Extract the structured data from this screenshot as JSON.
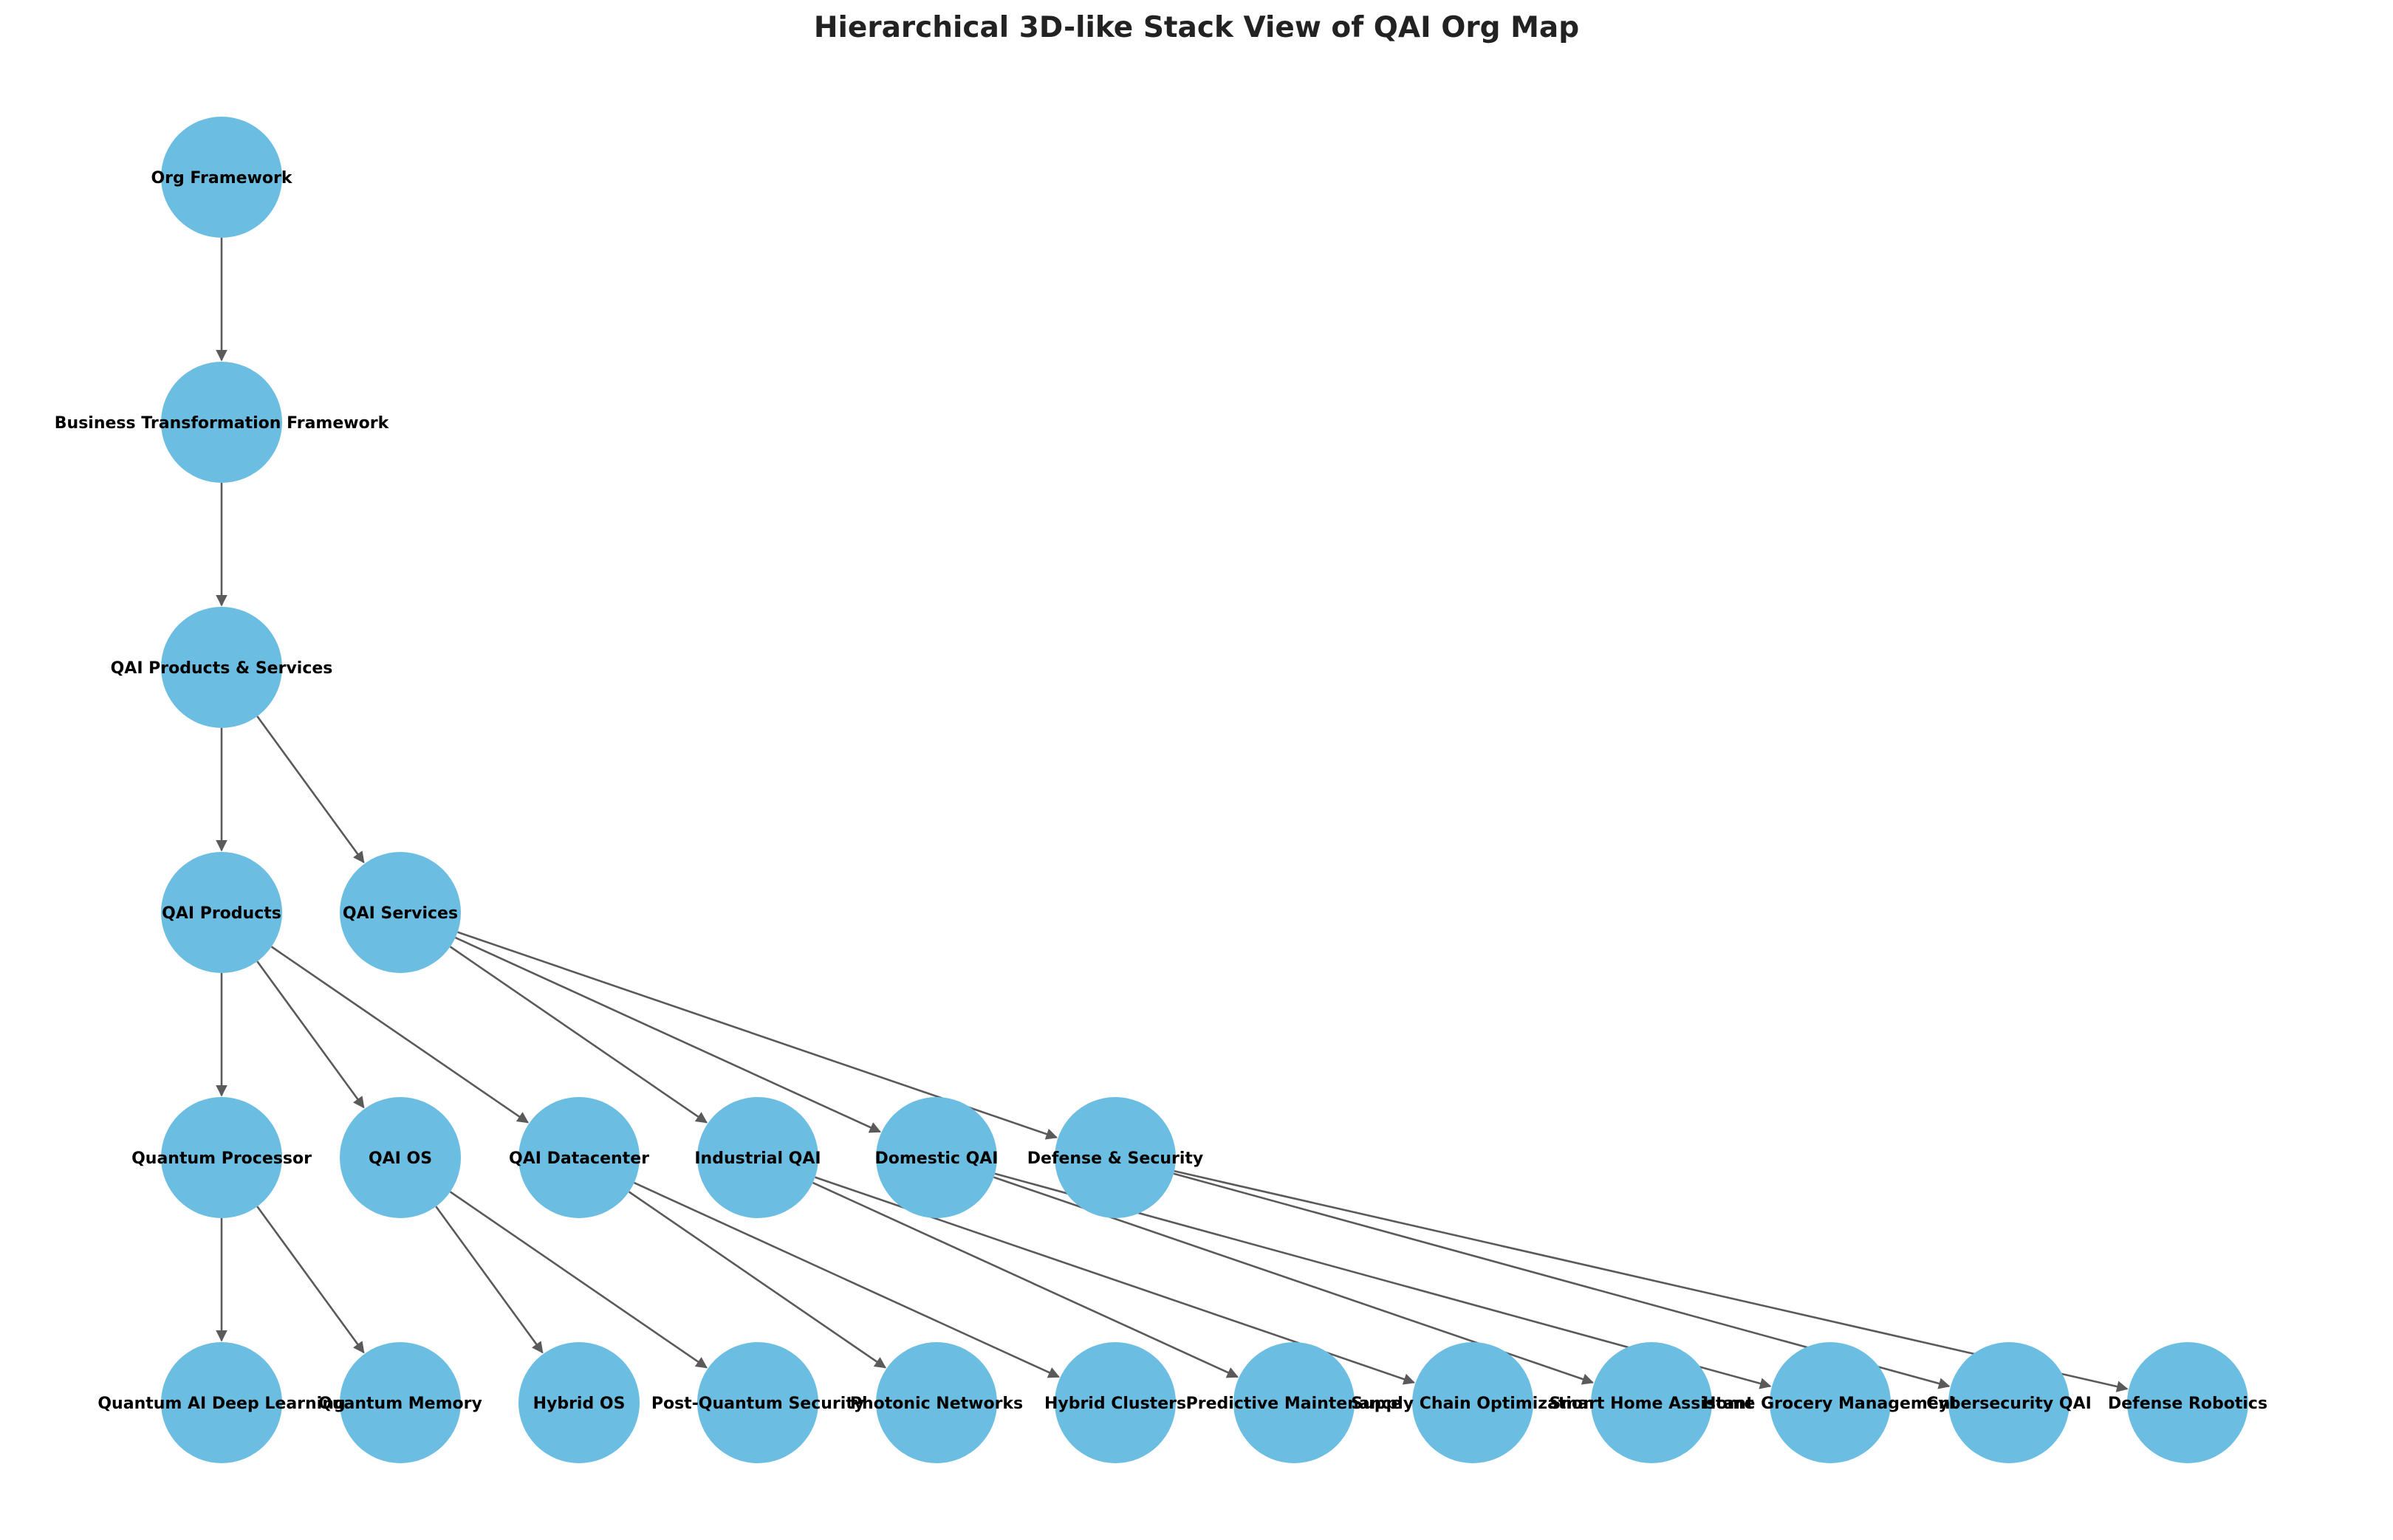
{
  "title": "Hierarchical 3D-like Stack View of QAI Org Map",
  "colors": {
    "node_fill": "#6bbde2",
    "edge": "#5a5a5a",
    "label": "#000000",
    "title": "#222222"
  },
  "levels": [
    [
      "org-framework"
    ],
    [
      "business-transformation-framework"
    ],
    [
      "qai-products-services"
    ],
    [
      "qai-products",
      "qai-services"
    ],
    [
      "quantum-processor",
      "qai-os",
      "qai-datacenter",
      "industrial-qai",
      "domestic-qai",
      "defense-security"
    ],
    [
      "quantum-ai-deep-learning",
      "quantum-memory",
      "hybrid-os",
      "post-quantum-security",
      "photonic-networks",
      "hybrid-clusters",
      "predictive-maintenance",
      "supply-chain-optimization",
      "smart-home-assistant",
      "home-grocery-management",
      "cybersecurity-qai",
      "defense-robotics"
    ]
  ],
  "nodes": [
    {
      "id": "org-framework",
      "label": "Org Framework"
    },
    {
      "id": "business-transformation-framework",
      "label": "Business Transformation Framework"
    },
    {
      "id": "qai-products-services",
      "label": "QAI Products & Services"
    },
    {
      "id": "qai-products",
      "label": "QAI Products"
    },
    {
      "id": "qai-services",
      "label": "QAI Services"
    },
    {
      "id": "quantum-processor",
      "label": "Quantum Processor"
    },
    {
      "id": "qai-os",
      "label": "QAI OS"
    },
    {
      "id": "qai-datacenter",
      "label": "QAI Datacenter"
    },
    {
      "id": "industrial-qai",
      "label": "Industrial QAI"
    },
    {
      "id": "domestic-qai",
      "label": "Domestic QAI"
    },
    {
      "id": "defense-security",
      "label": "Defense & Security"
    },
    {
      "id": "quantum-ai-deep-learning",
      "label": "Quantum AI Deep Learning"
    },
    {
      "id": "quantum-memory",
      "label": "Quantum Memory"
    },
    {
      "id": "hybrid-os",
      "label": "Hybrid OS"
    },
    {
      "id": "post-quantum-security",
      "label": "Post-Quantum Security"
    },
    {
      "id": "photonic-networks",
      "label": "Photonic Networks"
    },
    {
      "id": "hybrid-clusters",
      "label": "Hybrid Clusters"
    },
    {
      "id": "predictive-maintenance",
      "label": "Predictive Maintenance"
    },
    {
      "id": "supply-chain-optimization",
      "label": "Supply Chain Optimization"
    },
    {
      "id": "smart-home-assistant",
      "label": "Smart Home Assistant"
    },
    {
      "id": "home-grocery-management",
      "label": "Home Grocery Management"
    },
    {
      "id": "cybersecurity-qai",
      "label": "Cybersecurity QAI"
    },
    {
      "id": "defense-robotics",
      "label": "Defense Robotics"
    }
  ],
  "edges": [
    [
      "org-framework",
      "business-transformation-framework"
    ],
    [
      "business-transformation-framework",
      "qai-products-services"
    ],
    [
      "qai-products-services",
      "qai-products"
    ],
    [
      "qai-products-services",
      "qai-services"
    ],
    [
      "qai-products",
      "quantum-processor"
    ],
    [
      "qai-products",
      "qai-os"
    ],
    [
      "qai-products",
      "qai-datacenter"
    ],
    [
      "qai-services",
      "industrial-qai"
    ],
    [
      "qai-services",
      "domestic-qai"
    ],
    [
      "qai-services",
      "defense-security"
    ],
    [
      "quantum-processor",
      "quantum-ai-deep-learning"
    ],
    [
      "quantum-processor",
      "quantum-memory"
    ],
    [
      "qai-os",
      "hybrid-os"
    ],
    [
      "qai-os",
      "post-quantum-security"
    ],
    [
      "qai-datacenter",
      "photonic-networks"
    ],
    [
      "qai-datacenter",
      "hybrid-clusters"
    ],
    [
      "industrial-qai",
      "predictive-maintenance"
    ],
    [
      "industrial-qai",
      "supply-chain-optimization"
    ],
    [
      "domestic-qai",
      "smart-home-assistant"
    ],
    [
      "domestic-qai",
      "home-grocery-management"
    ],
    [
      "defense-security",
      "cybersecurity-qai"
    ],
    [
      "defense-security",
      "defense-robotics"
    ]
  ]
}
